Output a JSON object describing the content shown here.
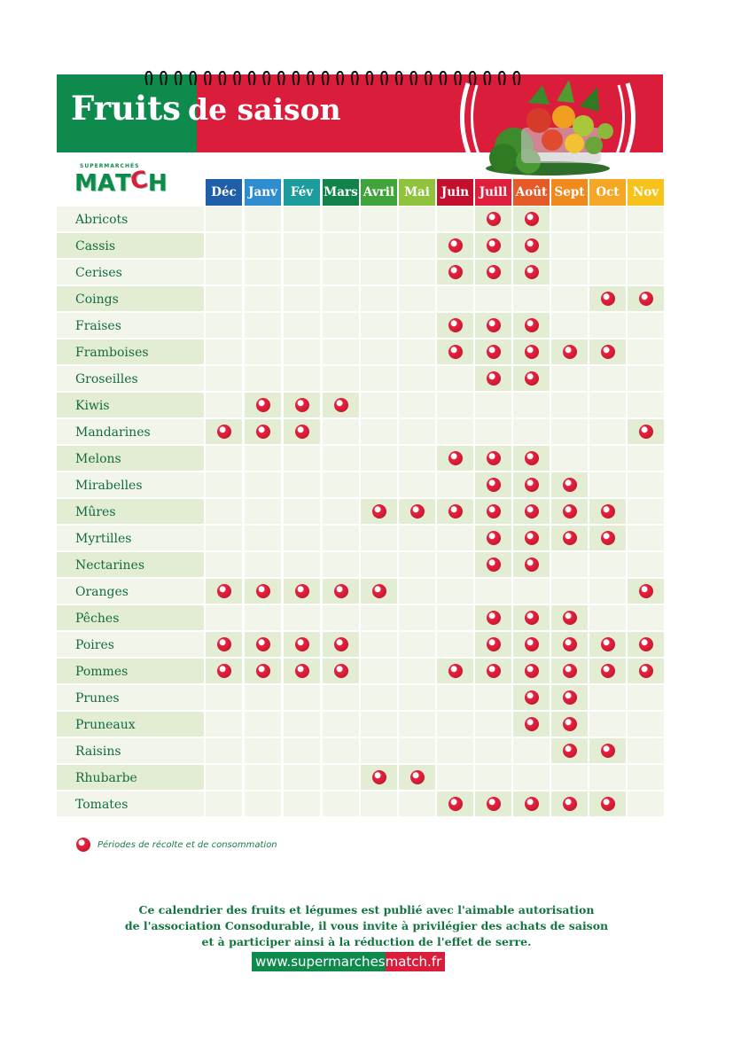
{
  "header": {
    "title_main": "Fruits",
    "title_sub": "de saison"
  },
  "logo": {
    "small_text": "SUPERMARCHÉS",
    "word": [
      "M",
      "A",
      "T",
      "C",
      "H"
    ]
  },
  "months": [
    {
      "label": "Déc",
      "color": "#1f5ea8"
    },
    {
      "label": "Janv",
      "color": "#2f8ccf"
    },
    {
      "label": "Fév",
      "color": "#1d9c9c"
    },
    {
      "label": "Mars",
      "color": "#10824a"
    },
    {
      "label": "Avril",
      "color": "#3fa53a"
    },
    {
      "label": "Mai",
      "color": "#8fc33b"
    },
    {
      "label": "Juin",
      "color": "#c2102d"
    },
    {
      "label": "Juill",
      "color": "#e01f3d"
    },
    {
      "label": "Août",
      "color": "#e65a28"
    },
    {
      "label": "Sept",
      "color": "#f08a1c"
    },
    {
      "label": "Oct",
      "color": "#f5a623"
    },
    {
      "label": "Nov",
      "color": "#f6c31a"
    }
  ],
  "fruits": [
    {
      "name": "Abricots",
      "months": [
        0,
        0,
        0,
        0,
        0,
        0,
        0,
        1,
        1,
        0,
        0,
        0
      ]
    },
    {
      "name": "Cassis",
      "months": [
        0,
        0,
        0,
        0,
        0,
        0,
        1,
        1,
        1,
        0,
        0,
        0
      ]
    },
    {
      "name": "Cerises",
      "months": [
        0,
        0,
        0,
        0,
        0,
        0,
        1,
        1,
        1,
        0,
        0,
        0
      ]
    },
    {
      "name": "Coings",
      "months": [
        0,
        0,
        0,
        0,
        0,
        0,
        0,
        0,
        0,
        0,
        1,
        1
      ]
    },
    {
      "name": "Fraises",
      "months": [
        0,
        0,
        0,
        0,
        0,
        0,
        1,
        1,
        1,
        0,
        0,
        0
      ]
    },
    {
      "name": "Framboises",
      "months": [
        0,
        0,
        0,
        0,
        0,
        0,
        1,
        1,
        1,
        1,
        1,
        0
      ]
    },
    {
      "name": "Groseilles",
      "months": [
        0,
        0,
        0,
        0,
        0,
        0,
        0,
        1,
        1,
        0,
        0,
        0
      ]
    },
    {
      "name": "Kiwis",
      "months": [
        0,
        1,
        1,
        1,
        0,
        0,
        0,
        0,
        0,
        0,
        0,
        0
      ]
    },
    {
      "name": "Mandarines",
      "months": [
        1,
        1,
        1,
        0,
        0,
        0,
        0,
        0,
        0,
        0,
        0,
        1
      ]
    },
    {
      "name": "Melons",
      "months": [
        0,
        0,
        0,
        0,
        0,
        0,
        1,
        1,
        1,
        0,
        0,
        0
      ]
    },
    {
      "name": "Mirabelles",
      "months": [
        0,
        0,
        0,
        0,
        0,
        0,
        0,
        1,
        1,
        1,
        0,
        0
      ]
    },
    {
      "name": "Mûres",
      "months": [
        0,
        0,
        0,
        0,
        1,
        1,
        1,
        1,
        1,
        1,
        1,
        0
      ]
    },
    {
      "name": "Myrtilles",
      "months": [
        0,
        0,
        0,
        0,
        0,
        0,
        0,
        1,
        1,
        1,
        1,
        0
      ]
    },
    {
      "name": "Nectarines",
      "months": [
        0,
        0,
        0,
        0,
        0,
        0,
        0,
        1,
        1,
        0,
        0,
        0
      ]
    },
    {
      "name": "Oranges",
      "months": [
        1,
        1,
        1,
        1,
        1,
        0,
        0,
        0,
        0,
        0,
        0,
        1
      ]
    },
    {
      "name": "Pêches",
      "months": [
        0,
        0,
        0,
        0,
        0,
        0,
        0,
        1,
        1,
        1,
        0,
        0
      ]
    },
    {
      "name": "Poires",
      "months": [
        1,
        1,
        1,
        1,
        0,
        0,
        0,
        1,
        1,
        1,
        1,
        1
      ]
    },
    {
      "name": "Pommes",
      "months": [
        1,
        1,
        1,
        1,
        0,
        0,
        1,
        1,
        1,
        1,
        1,
        1
      ]
    },
    {
      "name": "Prunes",
      "months": [
        0,
        0,
        0,
        0,
        0,
        0,
        0,
        0,
        1,
        1,
        0,
        0
      ]
    },
    {
      "name": "Pruneaux",
      "months": [
        0,
        0,
        0,
        0,
        0,
        0,
        0,
        0,
        1,
        1,
        0,
        0
      ]
    },
    {
      "name": "Raisins",
      "months": [
        0,
        0,
        0,
        0,
        0,
        0,
        0,
        0,
        0,
        1,
        1,
        0
      ]
    },
    {
      "name": "Rhubarbe",
      "months": [
        0,
        0,
        0,
        0,
        1,
        1,
        0,
        0,
        0,
        0,
        0,
        0
      ]
    },
    {
      "name": "Tomates",
      "months": [
        0,
        0,
        0,
        0,
        0,
        0,
        1,
        1,
        1,
        1,
        1,
        0
      ]
    }
  ],
  "legend": {
    "text": "Périodes de récolte et de consommation"
  },
  "footer": {
    "lines": [
      "Ce calendrier des fruits et légumes est publié avec l'aimable autorisation",
      "de l'association Consodurable, il vous invite à privilégier des achats de saison",
      "et à participer ainsi à la réduction de l'effet de serre."
    ],
    "site_part1": "www.supermarches",
    "site_part2": "match.fr"
  },
  "colors": {
    "green": "#0e8a4d",
    "red": "#db1d3c",
    "cell_light": "#f2f6ea",
    "cell_tint": "#e3edd3",
    "label_tint": "#e3edd3",
    "label_light": "#f2f6ea"
  }
}
